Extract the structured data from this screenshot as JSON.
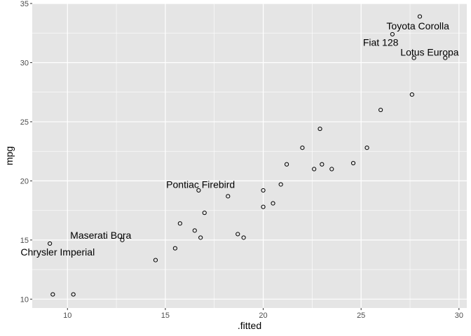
{
  "chart_data": {
    "type": "scatter",
    "title": "",
    "xlabel": ".fitted",
    "ylabel": "mpg",
    "xlim": [
      8.2,
      30.4
    ],
    "ylim": [
      9.25,
      35.0
    ],
    "xticks": [
      10,
      15,
      20,
      25,
      30
    ],
    "yticks": [
      10,
      15,
      20,
      25,
      30,
      35
    ],
    "grid": true,
    "legend": "none",
    "colors": {
      "panel_background": "#e5e5e5",
      "grid_major": "#ffffff",
      "point_stroke": "#000000",
      "axis_text": "#4d4d4d"
    },
    "points": [
      {
        "x": 9.25,
        "y": 10.4
      },
      {
        "x": 10.3,
        "y": 10.4
      },
      {
        "x": 9.1,
        "y": 14.7
      },
      {
        "x": 12.8,
        "y": 15.0
      },
      {
        "x": 14.5,
        "y": 13.3
      },
      {
        "x": 15.5,
        "y": 14.3
      },
      {
        "x": 15.75,
        "y": 16.4
      },
      {
        "x": 16.5,
        "y": 15.8
      },
      {
        "x": 16.8,
        "y": 15.2
      },
      {
        "x": 17.0,
        "y": 17.3
      },
      {
        "x": 16.7,
        "y": 19.2
      },
      {
        "x": 18.2,
        "y": 18.7
      },
      {
        "x": 18.7,
        "y": 15.5
      },
      {
        "x": 19.0,
        "y": 15.2
      },
      {
        "x": 20.0,
        "y": 17.8
      },
      {
        "x": 20.0,
        "y": 19.2
      },
      {
        "x": 20.5,
        "y": 18.1
      },
      {
        "x": 20.9,
        "y": 19.7
      },
      {
        "x": 21.2,
        "y": 21.4
      },
      {
        "x": 22.0,
        "y": 22.8
      },
      {
        "x": 22.6,
        "y": 21.0
      },
      {
        "x": 22.9,
        "y": 24.4
      },
      {
        "x": 23.0,
        "y": 21.4
      },
      {
        "x": 23.5,
        "y": 21.0
      },
      {
        "x": 24.6,
        "y": 21.5
      },
      {
        "x": 25.3,
        "y": 22.8
      },
      {
        "x": 26.0,
        "y": 26.0
      },
      {
        "x": 27.6,
        "y": 27.3
      },
      {
        "x": 26.6,
        "y": 32.4
      },
      {
        "x": 28.0,
        "y": 33.9
      },
      {
        "x": 27.7,
        "y": 30.4
      },
      {
        "x": 29.3,
        "y": 30.4
      }
    ],
    "annotations": [
      {
        "text": "Toyota Corolla",
        "x": 27.9,
        "y": 33.1
      },
      {
        "text": "Fiat 128",
        "x": 26.0,
        "y": 31.7
      },
      {
        "text": "Lotus Europa",
        "x": 28.5,
        "y": 30.9
      },
      {
        "text": "Pontiac Firebird",
        "x": 16.8,
        "y": 19.7
      },
      {
        "text": "Maserati Bora",
        "x": 11.7,
        "y": 15.4
      },
      {
        "text": "Chrysler Imperial",
        "x": 9.5,
        "y": 14.0
      }
    ]
  }
}
